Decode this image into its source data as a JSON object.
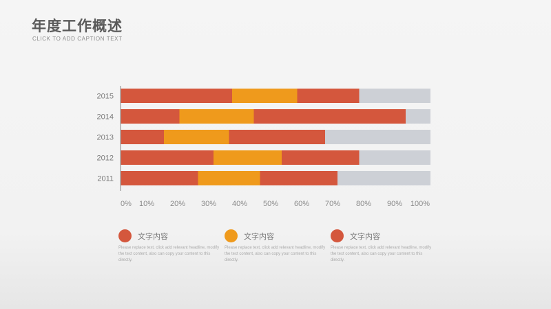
{
  "title": "年度工作概述",
  "subtitle": "CLICK TO ADD CAPTION TEXT",
  "colors": {
    "red": "#d4573d",
    "orange": "#ef9a1c",
    "gray": "#cdd0d6",
    "axis": "#999999"
  },
  "legend": [
    {
      "label": "文字内容",
      "color": "#d4573d",
      "desc": "Please replace text, click add relevant headline, modify the text content, also can copy your content to this directly."
    },
    {
      "label": "文字内容",
      "color": "#ef9a1c",
      "desc": "Please replace text, click add relevant headline, modify the text content, also can copy your content to this directly."
    },
    {
      "label": "文字内容",
      "color": "#d4573d",
      "desc": "Please replace text, click add relevant headline, modify the text content, also can copy your content to this directly."
    }
  ],
  "chart_data": {
    "type": "bar",
    "orientation": "horizontal",
    "stacked": true,
    "categories": [
      "2015",
      "2014",
      "2013",
      "2012",
      "2011"
    ],
    "series": [
      {
        "color": "#d4573d",
        "values": [
          36,
          19,
          14,
          30,
          25
        ]
      },
      {
        "color": "#ef9a1c",
        "values": [
          21,
          24,
          21,
          22,
          20
        ]
      },
      {
        "color": "#d4573d",
        "values": [
          20,
          49,
          31,
          25,
          25
        ]
      },
      {
        "color": "#cdd0d6",
        "values": [
          23,
          8,
          34,
          23,
          30
        ]
      }
    ],
    "xticks": [
      "0%",
      "10%",
      "20%",
      "30%",
      "40%",
      "50%",
      "60%",
      "70%",
      "80%",
      "90%",
      "100%"
    ],
    "xlim": [
      0,
      100
    ],
    "grid": false,
    "legend_position": "bottom"
  }
}
